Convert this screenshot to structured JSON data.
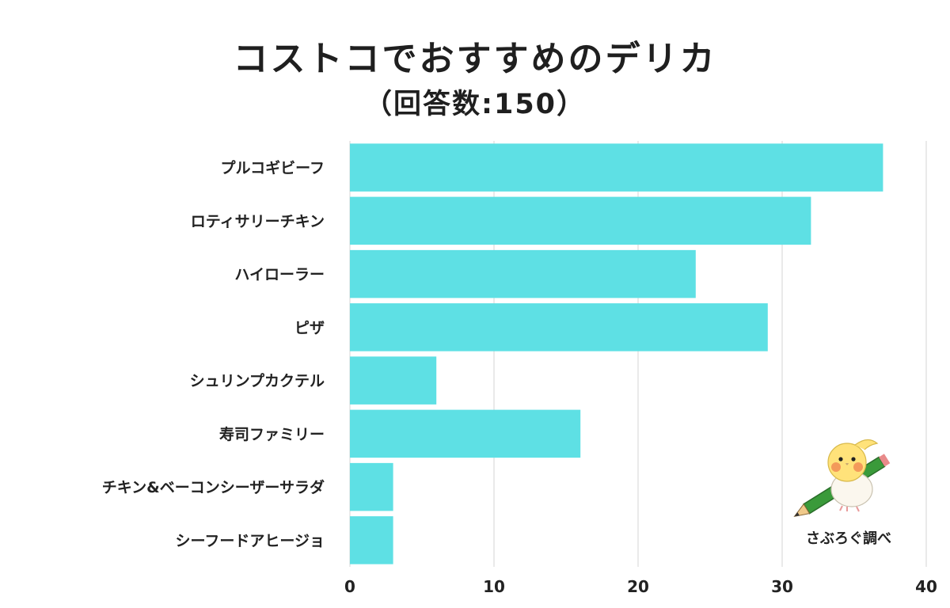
{
  "chart_data": {
    "type": "bar",
    "orientation": "horizontal",
    "title": "コストコでおすすめのデリカ",
    "subtitle": "（回答数:150）",
    "categories": [
      "プルコギビーフ",
      "ロティサリーチキン",
      "ハイローラー",
      "ピザ",
      "シュリンプカクテル",
      "寿司ファミリー",
      "チキン&ベーコンシーザーサラダ",
      "シーフードアヒージョ"
    ],
    "values": [
      37,
      32,
      24,
      29,
      6,
      16,
      3,
      3
    ],
    "xlim": [
      0,
      40
    ],
    "xticks": [
      0,
      10,
      20,
      30,
      40
    ],
    "xlabel": "",
    "ylabel": "",
    "grid": true,
    "bar_color": "#5ee0e4"
  },
  "watermark": {
    "text": "さぶろぐ調べ",
    "icon": "cockatiel-with-pencil-icon"
  }
}
